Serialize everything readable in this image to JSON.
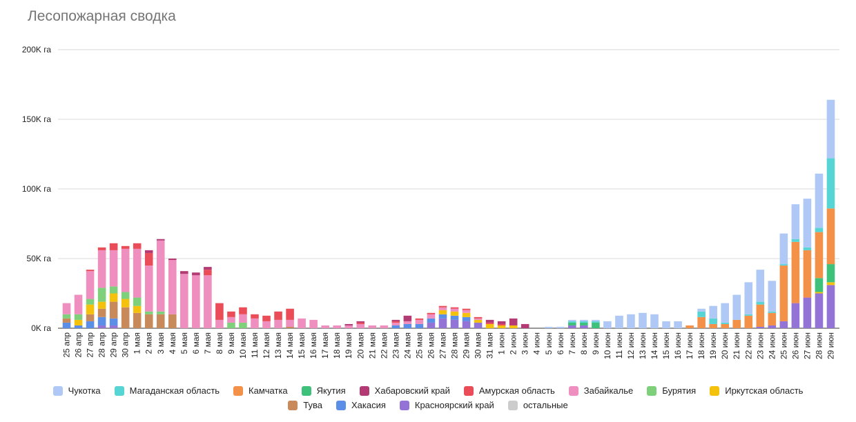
{
  "chart_data": {
    "type": "bar",
    "stacked": true,
    "title": "Лесопожарная сводка",
    "xlabel": "",
    "ylabel": "",
    "ylim": [
      0,
      200000
    ],
    "y_ticks": [
      {
        "value": 0,
        "label": "0K га"
      },
      {
        "value": 50000,
        "label": "50K га"
      },
      {
        "value": 100000,
        "label": "100K га"
      },
      {
        "value": 150000,
        "label": "150K га"
      },
      {
        "value": 200000,
        "label": "200K га"
      }
    ],
    "grid": true,
    "legend_position": "bottom",
    "categories": [
      "25 апр",
      "26 апр",
      "27 апр",
      "28 апр",
      "29 апр",
      "30 апр",
      "1 мая",
      "2 мая",
      "3 мая",
      "4 мая",
      "5 мая",
      "6 мая",
      "7 мая",
      "8 мая",
      "9 мая",
      "10 мая",
      "11 мая",
      "12 мая",
      "13 мая",
      "14 мая",
      "15 мая",
      "16 мая",
      "17 мая",
      "18 мая",
      "19 мая",
      "20 мая",
      "21 мая",
      "22 мая",
      "23 мая",
      "24 мая",
      "25 мая",
      "26 мая",
      "27 мая",
      "28 мая",
      "29 мая",
      "30 мая",
      "31 мая",
      "1 июн",
      "2 июн",
      "3 июн",
      "4 июн",
      "5 июн",
      "6 июн",
      "7 июн",
      "8 июн",
      "9 июн",
      "10 июн",
      "11 июн",
      "12 июн",
      "13 июн",
      "14 июн",
      "15 июн",
      "16 июн",
      "17 июн",
      "18 июн",
      "19 июн",
      "20 июн",
      "21 июн",
      "22 июн",
      "23 июн",
      "24 июн",
      "25 июн",
      "26 июн",
      "27 июн",
      "28 июн",
      "29 июн"
    ],
    "series": [
      {
        "name": "Красноярский край",
        "color": "#9473d6",
        "values": [
          0,
          0,
          0,
          2000,
          2000,
          0,
          0,
          0,
          0,
          0,
          0,
          0,
          0,
          0,
          0,
          0,
          0,
          0,
          0,
          0,
          0,
          0,
          0,
          0,
          0,
          0,
          0,
          0,
          0,
          0,
          0,
          4000,
          7000,
          6000,
          5000,
          4000,
          0,
          0,
          0,
          0,
          0,
          0,
          0,
          2000,
          2000,
          0,
          0,
          0,
          0,
          0,
          0,
          0,
          0,
          0,
          0,
          0,
          0,
          0,
          0,
          1000,
          2000,
          5000,
          18000,
          22000,
          25000,
          31000
        ]
      },
      {
        "name": "Хакасия",
        "color": "#5b8ee6",
        "values": [
          4000,
          2000,
          5000,
          6000,
          5000,
          0,
          0,
          0,
          0,
          0,
          0,
          0,
          0,
          0,
          0,
          0,
          0,
          0,
          0,
          0,
          0,
          0,
          0,
          0,
          0,
          0,
          0,
          0,
          2000,
          3000,
          3000,
          3000,
          3000,
          3000,
          3000,
          0,
          0,
          0,
          0,
          0,
          0,
          0,
          0,
          0,
          0,
          0,
          0,
          0,
          0,
          0,
          0,
          0,
          0,
          0,
          0,
          0,
          0,
          0,
          0,
          0,
          0,
          0,
          0,
          0,
          0,
          0
        ]
      },
      {
        "name": "Тува",
        "color": "#c88a5a",
        "values": [
          3000,
          0,
          5000,
          6000,
          12000,
          15000,
          11000,
          10000,
          10000,
          10000,
          0,
          0,
          0,
          0,
          0,
          0,
          0,
          0,
          0,
          1000,
          0,
          0,
          0,
          0,
          0,
          0,
          0,
          0,
          0,
          0,
          0,
          0,
          0,
          0,
          0,
          0,
          0,
          0,
          0,
          0,
          0,
          0,
          0,
          0,
          0,
          0,
          0,
          0,
          0,
          0,
          0,
          0,
          0,
          0,
          0,
          0,
          0,
          0,
          0,
          0,
          0,
          0,
          0,
          0,
          0,
          0
        ]
      },
      {
        "name": "Иркутская область",
        "color": "#f4c20d",
        "values": [
          0,
          4000,
          7000,
          5000,
          6000,
          6000,
          5000,
          0,
          0,
          0,
          0,
          0,
          0,
          0,
          0,
          0,
          0,
          0,
          0,
          0,
          0,
          0,
          0,
          0,
          0,
          0,
          0,
          0,
          0,
          0,
          0,
          0,
          3000,
          3000,
          3000,
          2000,
          3000,
          2000,
          2000,
          0,
          0,
          0,
          0,
          0,
          0,
          0,
          0,
          0,
          0,
          0,
          0,
          0,
          0,
          0,
          0,
          0,
          0,
          0,
          0,
          0,
          0,
          0,
          0,
          0,
          1000,
          2000
        ]
      },
      {
        "name": "Бурятия",
        "color": "#7ed07a",
        "values": [
          3000,
          4000,
          4000,
          10000,
          5000,
          5000,
          6000,
          2000,
          2000,
          0,
          0,
          0,
          0,
          0,
          4000,
          4000,
          0,
          0,
          0,
          0,
          0,
          0,
          0,
          0,
          0,
          0,
          0,
          0,
          0,
          0,
          0,
          0,
          0,
          0,
          0,
          0,
          0,
          0,
          0,
          0,
          0,
          0,
          0,
          0,
          0,
          0,
          0,
          0,
          0,
          0,
          0,
          0,
          0,
          0,
          0,
          0,
          0,
          0,
          0,
          0,
          0,
          0,
          0,
          0,
          0,
          0
        ]
      },
      {
        "name": "Забайкалье",
        "color": "#ee8fbf",
        "values": [
          8000,
          14000,
          20000,
          27000,
          26000,
          31000,
          35000,
          33000,
          51000,
          39000,
          39000,
          38000,
          38000,
          6000,
          4000,
          6000,
          7000,
          5000,
          6000,
          5000,
          7000,
          6000,
          2000,
          2000,
          2000,
          3000,
          2000,
          2000,
          2000,
          2000,
          3000,
          3000,
          2000,
          2000,
          2000,
          1000,
          0,
          0,
          0,
          0,
          0,
          0,
          0,
          0,
          0,
          0,
          0,
          0,
          0,
          0,
          0,
          0,
          0,
          0,
          0,
          0,
          0,
          0,
          0,
          0,
          0,
          0,
          0,
          0,
          0,
          0
        ]
      },
      {
        "name": "Амурская область",
        "color": "#ea4d57",
        "values": [
          0,
          0,
          1000,
          2000,
          5000,
          2000,
          4000,
          9000,
          0,
          0,
          0,
          0,
          4000,
          12000,
          4000,
          5000,
          3000,
          4000,
          6000,
          8000,
          0,
          0,
          0,
          0,
          0,
          1000,
          0,
          0,
          1000,
          0,
          1000,
          1000,
          1000,
          1000,
          1000,
          1000,
          1000,
          1000,
          0,
          0,
          0,
          0,
          0,
          0,
          0,
          0,
          0,
          0,
          0,
          0,
          0,
          0,
          0,
          0,
          0,
          0,
          0,
          0,
          0,
          0,
          0,
          0,
          0,
          0,
          0,
          0
        ]
      },
      {
        "name": "Хабаровский край",
        "color": "#b33a73",
        "values": [
          0,
          0,
          0,
          0,
          0,
          0,
          0,
          2000,
          1000,
          1000,
          2000,
          2000,
          2000,
          0,
          0,
          0,
          0,
          0,
          0,
          0,
          0,
          0,
          0,
          0,
          1000,
          1000,
          0,
          0,
          1000,
          4000,
          0,
          0,
          0,
          0,
          0,
          0,
          2000,
          2000,
          5000,
          3000,
          0,
          0,
          0,
          0,
          0,
          0,
          0,
          0,
          0,
          0,
          0,
          0,
          0,
          0,
          0,
          0,
          0,
          0,
          0,
          0,
          0,
          0,
          0,
          0,
          0,
          0
        ]
      },
      {
        "name": "Якутия",
        "color": "#3dc17b",
        "values": [
          0,
          0,
          0,
          0,
          0,
          0,
          0,
          0,
          0,
          0,
          0,
          0,
          0,
          0,
          0,
          0,
          0,
          0,
          0,
          0,
          0,
          0,
          0,
          0,
          0,
          0,
          0,
          0,
          0,
          0,
          0,
          0,
          0,
          0,
          0,
          0,
          0,
          0,
          0,
          0,
          0,
          0,
          0,
          2000,
          2000,
          4000,
          0,
          0,
          0,
          0,
          0,
          0,
          0,
          0,
          0,
          0,
          0,
          0,
          0,
          0,
          0,
          0,
          0,
          0,
          10000,
          13000
        ]
      },
      {
        "name": "Камчатка",
        "color": "#f39149",
        "values": [
          0,
          0,
          0,
          0,
          0,
          0,
          0,
          0,
          0,
          0,
          0,
          0,
          0,
          0,
          0,
          0,
          0,
          0,
          0,
          0,
          0,
          0,
          0,
          0,
          0,
          0,
          0,
          0,
          0,
          0,
          0,
          0,
          0,
          0,
          0,
          0,
          0,
          0,
          0,
          0,
          0,
          0,
          0,
          0,
          0,
          0,
          0,
          0,
          0,
          0,
          0,
          0,
          0,
          2000,
          8000,
          3000,
          3000,
          6000,
          9000,
          16000,
          9000,
          40000,
          44000,
          34000,
          33000,
          40000
        ]
      },
      {
        "name": "Магаданская область",
        "color": "#57d4d4",
        "values": [
          0,
          0,
          0,
          0,
          0,
          0,
          0,
          0,
          0,
          0,
          0,
          0,
          0,
          0,
          0,
          0,
          0,
          0,
          0,
          0,
          0,
          0,
          0,
          0,
          0,
          0,
          0,
          0,
          0,
          0,
          0,
          0,
          0,
          0,
          0,
          0,
          0,
          0,
          0,
          0,
          0,
          0,
          0,
          1000,
          1000,
          1000,
          0,
          0,
          0,
          0,
          0,
          0,
          0,
          0,
          4000,
          4000,
          1000,
          0,
          1000,
          2000,
          1000,
          1000,
          2000,
          2000,
          3000,
          36000
        ]
      },
      {
        "name": "Чукотка",
        "color": "#afc8f5",
        "values": [
          0,
          0,
          0,
          0,
          0,
          0,
          0,
          0,
          0,
          0,
          0,
          0,
          0,
          0,
          0,
          0,
          0,
          0,
          0,
          0,
          0,
          0,
          0,
          0,
          0,
          0,
          0,
          0,
          0,
          0,
          0,
          0,
          0,
          0,
          0,
          0,
          0,
          0,
          0,
          0,
          0,
          1000,
          1000,
          1000,
          1000,
          1000,
          5000,
          9000,
          10000,
          11000,
          10000,
          5000,
          5000,
          0,
          2000,
          9000,
          14000,
          18000,
          23000,
          23000,
          22000,
          22000,
          25000,
          35000,
          39000,
          42000
        ]
      },
      {
        "name": "остальные",
        "color": "#cccccc",
        "values": [
          0,
          0,
          0,
          0,
          0,
          0,
          0,
          0,
          0,
          0,
          0,
          0,
          0,
          0,
          0,
          0,
          0,
          0,
          0,
          0,
          0,
          0,
          0,
          0,
          0,
          0,
          0,
          0,
          0,
          0,
          0,
          0,
          0,
          0,
          0,
          0,
          0,
          0,
          0,
          0,
          0,
          0,
          0,
          0,
          0,
          0,
          0,
          0,
          0,
          0,
          0,
          0,
          0,
          0,
          0,
          0,
          0,
          0,
          0,
          0,
          0,
          0,
          0,
          0,
          0,
          0
        ]
      }
    ],
    "legend": [
      [
        "Чукотка",
        "Магаданская область",
        "Камчатка",
        "Якутия",
        "Хабаровский край",
        "Амурская область",
        "Забайкалье",
        "Бурятия",
        "Иркутская область"
      ],
      [
        "Тува",
        "Хакасия",
        "Красноярский край",
        "остальные"
      ]
    ]
  }
}
